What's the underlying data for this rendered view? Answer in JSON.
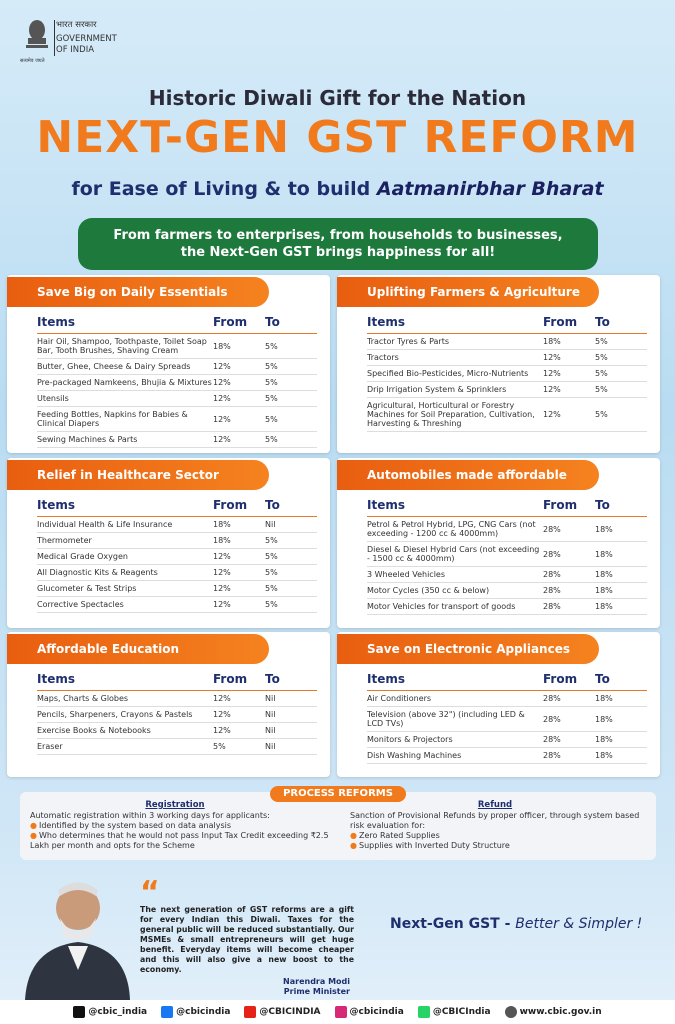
{
  "header": {
    "emblem_hindi": "भारत सरकार",
    "emblem_line1": "GOVERNMENT",
    "emblem_line2": "OF INDIA",
    "emblem_motto": "सत्यमेव जयते",
    "kicker": "Historic Diwali Gift for the Nation",
    "title": "NEXT-GEN GST REFORM",
    "subtitle": "for Ease of Living & to build",
    "subtitle_emphasis": "Aatmanirbhar Bharat",
    "banner": [
      "From farmers to enterprises, from households to businesses,",
      "the Next-Gen GST brings happiness for all!"
    ]
  },
  "sections": [
    {
      "title": "Save Big on Daily Essentials",
      "columns": [
        "Items",
        "From",
        "To"
      ],
      "rows": [
        [
          "Hair Oil, Shampoo, Toothpaste, Toilet Soap Bar, Tooth Brushes, Shaving Cream",
          "18%",
          "5%"
        ],
        [
          "Butter, Ghee, Cheese & Dairy Spreads",
          "12%",
          "5%"
        ],
        [
          "Pre-packaged Namkeens, Bhujia & Mixtures",
          "12%",
          "5%"
        ],
        [
          "Utensils",
          "12%",
          "5%"
        ],
        [
          "Feeding Bottles, Napkins for Babies & Clinical Diapers",
          "12%",
          "5%"
        ],
        [
          "Sewing Machines & Parts",
          "12%",
          "5%"
        ]
      ]
    },
    {
      "title": "Uplifting Farmers & Agriculture",
      "columns": [
        "Items",
        "From",
        "To"
      ],
      "rows": [
        [
          "Tractor Tyres & Parts",
          "18%",
          "5%"
        ],
        [
          "Tractors",
          "12%",
          "5%"
        ],
        [
          "Specified Bio-Pesticides, Micro-Nutrients",
          "12%",
          "5%"
        ],
        [
          "Drip Irrigation System & Sprinklers",
          "12%",
          "5%"
        ],
        [
          "Agricultural, Horticultural or Forestry Machines for Soil Preparation, Cultivation, Harvesting & Threshing",
          "12%",
          "5%"
        ]
      ]
    },
    {
      "title": "Relief in Healthcare Sector",
      "columns": [
        "Items",
        "From",
        "To"
      ],
      "rows": [
        [
          "Individual Health & Life Insurance",
          "18%",
          "Nil"
        ],
        [
          "Thermometer",
          "18%",
          "5%"
        ],
        [
          "Medical Grade Oxygen",
          "12%",
          "5%"
        ],
        [
          "All Diagnostic Kits & Reagents",
          "12%",
          "5%"
        ],
        [
          "Glucometer & Test Strips",
          "12%",
          "5%"
        ],
        [
          "Corrective Spectacles",
          "12%",
          "5%"
        ]
      ]
    },
    {
      "title": "Automobiles made affordable",
      "columns": [
        "Items",
        "From",
        "To"
      ],
      "rows": [
        [
          "Petrol & Petrol Hybrid, LPG, CNG Cars (not exceeding - 1200 cc & 4000mm)",
          "28%",
          "18%"
        ],
        [
          "Diesel & Diesel Hybrid Cars (not exceeding - 1500 cc & 4000mm)",
          "28%",
          "18%"
        ],
        [
          "3 Wheeled Vehicles",
          "28%",
          "18%"
        ],
        [
          "Motor Cycles (350 cc & below)",
          "28%",
          "18%"
        ],
        [
          "Motor Vehicles for transport of goods",
          "28%",
          "18%"
        ]
      ]
    },
    {
      "title": "Affordable Education",
      "columns": [
        "Items",
        "From",
        "To"
      ],
      "rows": [
        [
          "Maps, Charts & Globes",
          "12%",
          "Nil"
        ],
        [
          "Pencils, Sharpeners, Crayons & Pastels",
          "12%",
          "Nil"
        ],
        [
          "Exercise Books & Notebooks",
          "12%",
          "Nil"
        ],
        [
          "Eraser",
          "5%",
          "Nil"
        ]
      ]
    },
    {
      "title": "Save on Electronic Appliances",
      "columns": [
        "Items",
        "From",
        "To"
      ],
      "rows": [
        [
          "Air Conditioners",
          "28%",
          "18%"
        ],
        [
          "Television (above 32\") (including LED & LCD TVs)",
          "28%",
          "18%"
        ],
        [
          "Monitors & Projectors",
          "28%",
          "18%"
        ],
        [
          "Dish Washing Machines",
          "28%",
          "18%"
        ]
      ]
    }
  ],
  "process_reforms": {
    "title": "PROCESS REFORMS",
    "registration": {
      "title": "Registration",
      "intro": "Automatic registration within 3 working days for applicants:",
      "bullets": [
        "Identified by the system based on data analysis",
        "Who determines that he would not pass Input Tax Credit exceeding ₹2.5 Lakh per month and opts for the Scheme"
      ]
    },
    "refund": {
      "title": "Refund",
      "intro": "Sanction of Provisional Refunds by proper officer, through system based risk evaluation for:",
      "bullets": [
        "Zero Rated Supplies",
        "Supplies with Inverted Duty Structure"
      ]
    }
  },
  "quote": {
    "text": "The next generation of GST reforms are a gift for every Indian this Diwali. Taxes for the general public will be reduced substantially. Our MSMEs & small entrepreneurs will get huge benefit. Everyday items will become cheaper and this will also give a new boost to the economy.",
    "name": "Narendra Modi",
    "role": "Prime Minister"
  },
  "tagline": {
    "main": "Next-Gen GST -",
    "emphasis": "Better & Simpler !"
  },
  "footer": {
    "handles": [
      "@cbic_india",
      "@cbicindia",
      "@CBICINDIA",
      "@cbicindia",
      "@CBICIndia",
      "www.cbic.gov.in"
    ]
  }
}
